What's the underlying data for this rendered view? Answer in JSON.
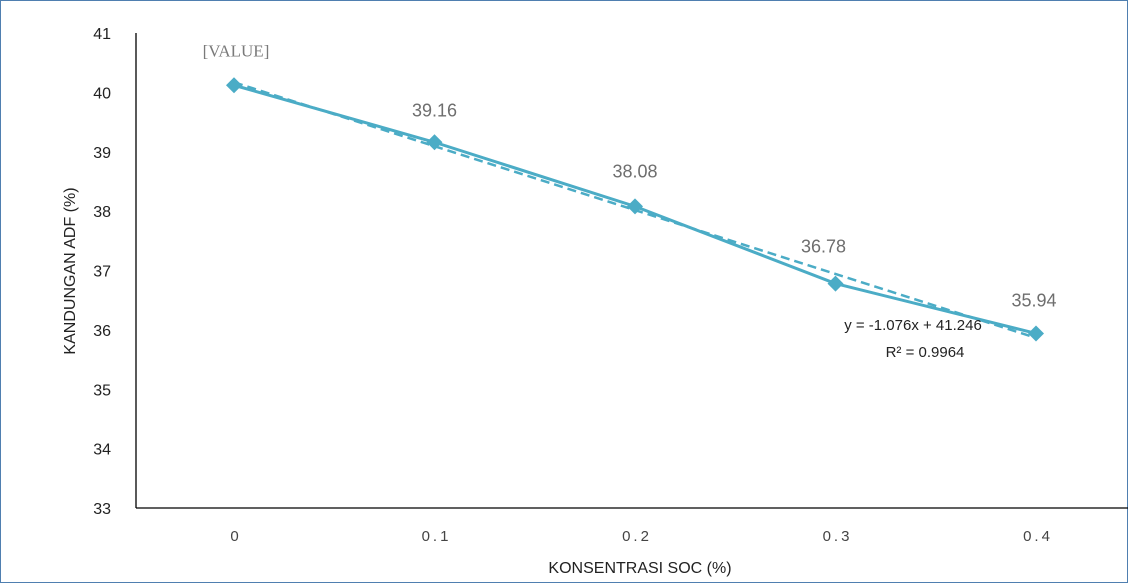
{
  "chart_data": {
    "type": "line",
    "title": "",
    "xlabel": "KONSENTRASI SOC (%)",
    "ylabel": "KANDUNGAN ADF (%)",
    "categories": [
      "0",
      "0.1",
      "0.2",
      "0.3",
      "0.4"
    ],
    "ylim": [
      33,
      41
    ],
    "y_ticks": [
      "33",
      "34",
      "35",
      "36",
      "37",
      "38",
      "39",
      "40",
      "41"
    ],
    "series": [
      {
        "values": [
          40.12,
          39.16,
          38.08,
          36.78,
          35.94
        ],
        "data_labels": [
          "[VALUE]",
          "39.16",
          "38.08",
          "36.78",
          "35.94"
        ],
        "color": "#4bacc6",
        "marker": "diamond"
      }
    ],
    "trendline": {
      "type": "linear",
      "style": "dashed",
      "slope": -1.076,
      "intercept": 41.246,
      "color": "#4bacc6",
      "equation": "y = -1.076x + 41.246",
      "r_squared": "R² = 0.9964"
    },
    "grid": false,
    "legend": "none"
  }
}
